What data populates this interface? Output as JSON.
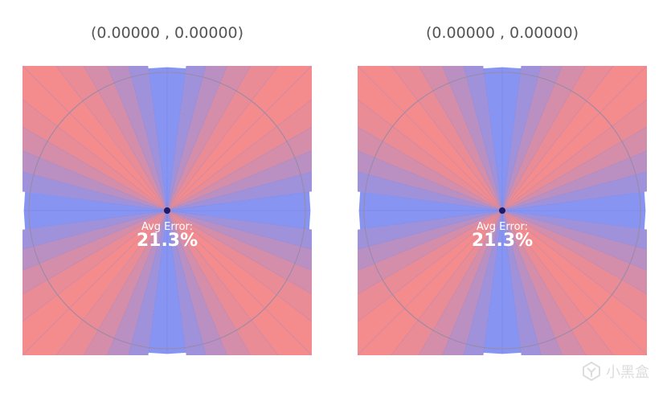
{
  "panels": [
    {
      "coord_label": "(0.00000 , 0.00000)",
      "error_title": "Avg Error:",
      "error_value": "21.3%"
    },
    {
      "coord_label": "(0.00000 , 0.00000)",
      "error_title": "Avg Error:",
      "error_value": "21.3%"
    }
  ],
  "watermark": {
    "text": "小黑盒",
    "logo_icon": "xiaoheihe-logo-icon"
  },
  "colors": {
    "error_high": "#f47b7b",
    "error_low": "#6f86f6",
    "ray_line": "#4a62e0",
    "center_dot": "#221a66",
    "circle": "#9a8aa8",
    "label_text": "#555555"
  }
}
